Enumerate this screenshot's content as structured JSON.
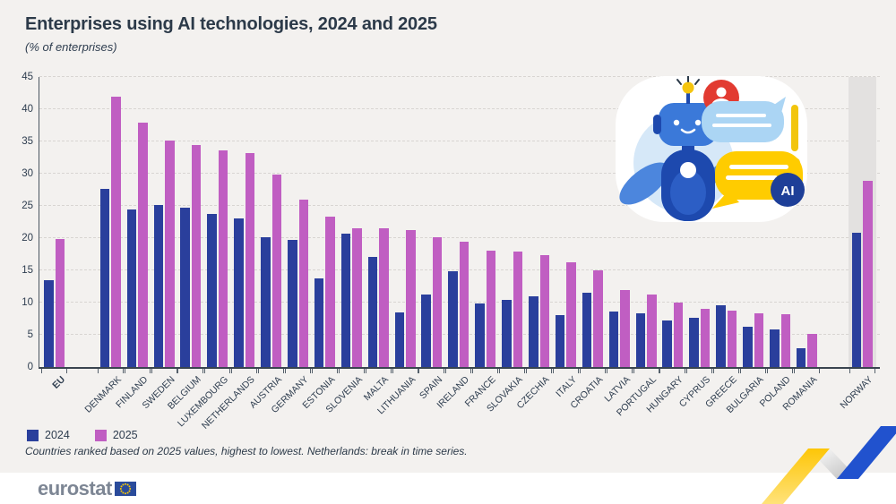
{
  "title": "Enterprises using AI technologies, 2024 and 2025",
  "subtitle": "(% of enterprises)",
  "footnote": "Countries ranked based on 2025 values, highest to lowest. Netherlands: break in time series.",
  "footer": {
    "brand": "eurostat"
  },
  "illustration": {
    "ai_badge": "AI"
  },
  "colors": {
    "bar_2024": "#2a3f9c",
    "bar_2025": "#c05ec2",
    "text_navy": "#2e3d4f",
    "norway_band": "#e3e1e0",
    "background": "#f3f1ef",
    "eu_flag_blue": "#2a4b9b",
    "star_yellow": "#ffcc00"
  },
  "chart_data": {
    "type": "bar",
    "title": "Enterprises using AI technologies, 2024 and 2025",
    "ylabel": "% of enterprises",
    "xlabel": "",
    "ylim": [
      0,
      45
    ],
    "yticks": [
      0,
      5,
      10,
      15,
      20,
      25,
      30,
      35,
      40,
      45
    ],
    "grid": true,
    "legend_position": "bottom-left",
    "categories": [
      "EU",
      "DENMARK",
      "FINLAND",
      "SWEDEN",
      "BELGIUM",
      "LUXEMBOURG",
      "NETHERLANDS",
      "AUSTRIA",
      "GERMANY",
      "ESTONIA",
      "SLOVENIA",
      "MALTA",
      "LITHUANIA",
      "SPAIN",
      "IRELAND",
      "FRANCE",
      "SLOVAKIA",
      "CZECHIA",
      "ITALY",
      "CROATIA",
      "LATVIA",
      "PORTUGAL",
      "HUNGARY",
      "CYPRUS",
      "GREECE",
      "BULGARIA",
      "POLAND",
      "ROMANIA",
      "NORWAY"
    ],
    "series": [
      {
        "name": "2024",
        "color": "#2a3f9c",
        "values": [
          13.5,
          27.6,
          24.4,
          25.1,
          24.7,
          23.8,
          23.1,
          20.2,
          19.7,
          13.8,
          20.7,
          17.1,
          8.5,
          11.2,
          14.8,
          9.8,
          10.4,
          11.0,
          8.0,
          11.5,
          8.6,
          8.4,
          7.2,
          7.6,
          9.6,
          6.2,
          5.8,
          2.9,
          20.8
        ]
      },
      {
        "name": "2025",
        "color": "#c05ec2",
        "values": [
          19.9,
          42.0,
          37.9,
          35.1,
          34.5,
          33.6,
          33.2,
          29.9,
          26.0,
          23.3,
          21.5,
          21.5,
          21.2,
          20.2,
          19.5,
          18.0,
          17.9,
          17.4,
          16.2,
          15.0,
          12.0,
          11.3,
          10.0,
          9.0,
          8.7,
          8.4,
          8.2,
          5.1,
          28.9
        ]
      }
    ],
    "highlighted_category": "NORWAY"
  }
}
